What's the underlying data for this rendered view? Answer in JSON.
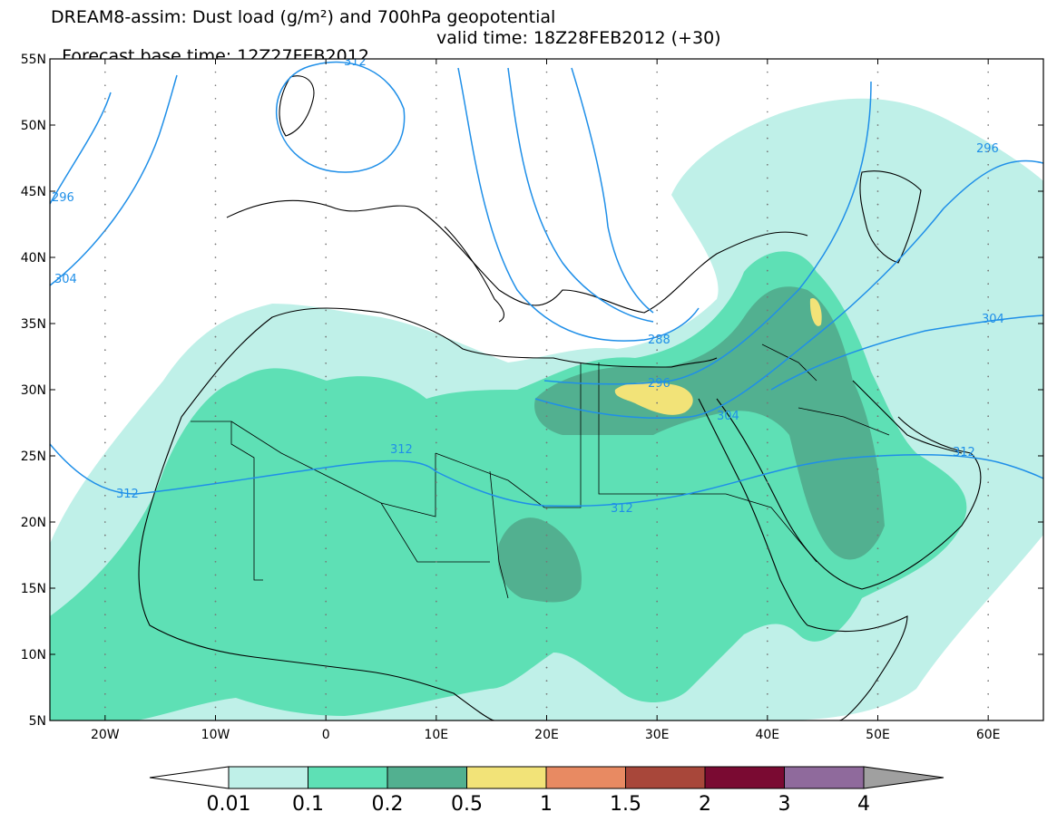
{
  "title": {
    "line1": "DREAM8-assim: Dust load (g/m²) and 700hPa geopotential",
    "line2_base": "Forecast base time: 12Z27FEB2012",
    "line2_valid": "valid time: 18Z28FEB2012 (+30)"
  },
  "axes": {
    "lat_labels": [
      "55N",
      "50N",
      "45N",
      "40N",
      "35N",
      "30N",
      "25N",
      "20N",
      "15N",
      "10N",
      "5N"
    ],
    "lat_values": [
      55,
      50,
      45,
      40,
      35,
      30,
      25,
      20,
      15,
      10,
      5
    ],
    "lon_labels": [
      "20W",
      "10W",
      "0",
      "10E",
      "20E",
      "30E",
      "40E",
      "50E",
      "60E"
    ],
    "lon_values": [
      -20,
      -10,
      0,
      10,
      20,
      30,
      40,
      50,
      60
    ],
    "lon_range": [
      -25,
      65
    ],
    "lat_range": [
      5,
      55
    ]
  },
  "colorbar": {
    "labels": [
      "0.01",
      "0.1",
      "0.2",
      "0.5",
      "1",
      "1.5",
      "2",
      "3",
      "4"
    ],
    "colors": [
      "#ffffff",
      "#bff0e8",
      "#5ee0b5",
      "#52b090",
      "#f2e378",
      "#e88a62",
      "#a8473a",
      "#7a0a32",
      "#8f6a9c",
      "#a0a0a0"
    ]
  },
  "contours": {
    "color": "#1f8fe8",
    "labels": [
      "312",
      "296",
      "304",
      "288",
      "296",
      "304",
      "312",
      "312",
      "312",
      "296",
      "304",
      "312"
    ]
  },
  "colors": {
    "land_outline": "#000000",
    "dust_001": "#bff0e8",
    "dust_01": "#5ee0b5",
    "dust_02": "#52b090",
    "dust_05": "#f2e378"
  }
}
